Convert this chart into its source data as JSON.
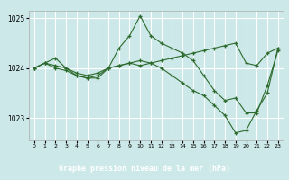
{
  "title": "Graphe pression niveau de la mer (hPa)",
  "background_color": "#cce8e8",
  "plot_bg_color": "#cce8e8",
  "grid_color": "#ffffff",
  "line_color": "#2d6a2d",
  "marker_color": "#2d6a2d",
  "label_bg_color": "#4a7a4a",
  "label_text_color": "#ffffff",
  "xlim": [
    -0.5,
    23.5
  ],
  "ylim": [
    1022.55,
    1025.15
  ],
  "yticks": [
    1023,
    1024,
    1025
  ],
  "xticks": [
    0,
    1,
    2,
    3,
    4,
    5,
    6,
    7,
    8,
    9,
    10,
    11,
    12,
    13,
    14,
    15,
    16,
    17,
    18,
    19,
    20,
    21,
    22,
    23
  ],
  "series": [
    [
      1024.0,
      1024.1,
      1024.05,
      1024.0,
      1023.9,
      1023.85,
      1023.9,
      1024.0,
      1024.05,
      1024.1,
      1024.05,
      1024.1,
      1024.15,
      1024.2,
      1024.25,
      1024.3,
      1024.35,
      1024.4,
      1024.45,
      1024.5,
      1024.1,
      1024.05,
      1024.3,
      1024.4
    ],
    [
      1024.0,
      1024.1,
      1024.2,
      1024.0,
      1023.85,
      1023.8,
      1023.85,
      1024.0,
      1024.4,
      1024.65,
      1025.05,
      1024.65,
      1024.5,
      1024.4,
      1024.3,
      1024.15,
      1023.85,
      1023.55,
      1023.35,
      1023.4,
      1023.1,
      1023.1,
      1023.65,
      1024.35
    ],
    [
      1024.0,
      1024.1,
      1024.0,
      1023.95,
      1023.85,
      1023.8,
      1023.8,
      1024.0,
      1024.05,
      1024.1,
      1024.15,
      1024.1,
      1024.0,
      1023.85,
      1023.7,
      1023.55,
      1023.45,
      1023.25,
      1023.05,
      1022.7,
      1022.75,
      1023.15,
      1023.5,
      1024.4
    ]
  ]
}
